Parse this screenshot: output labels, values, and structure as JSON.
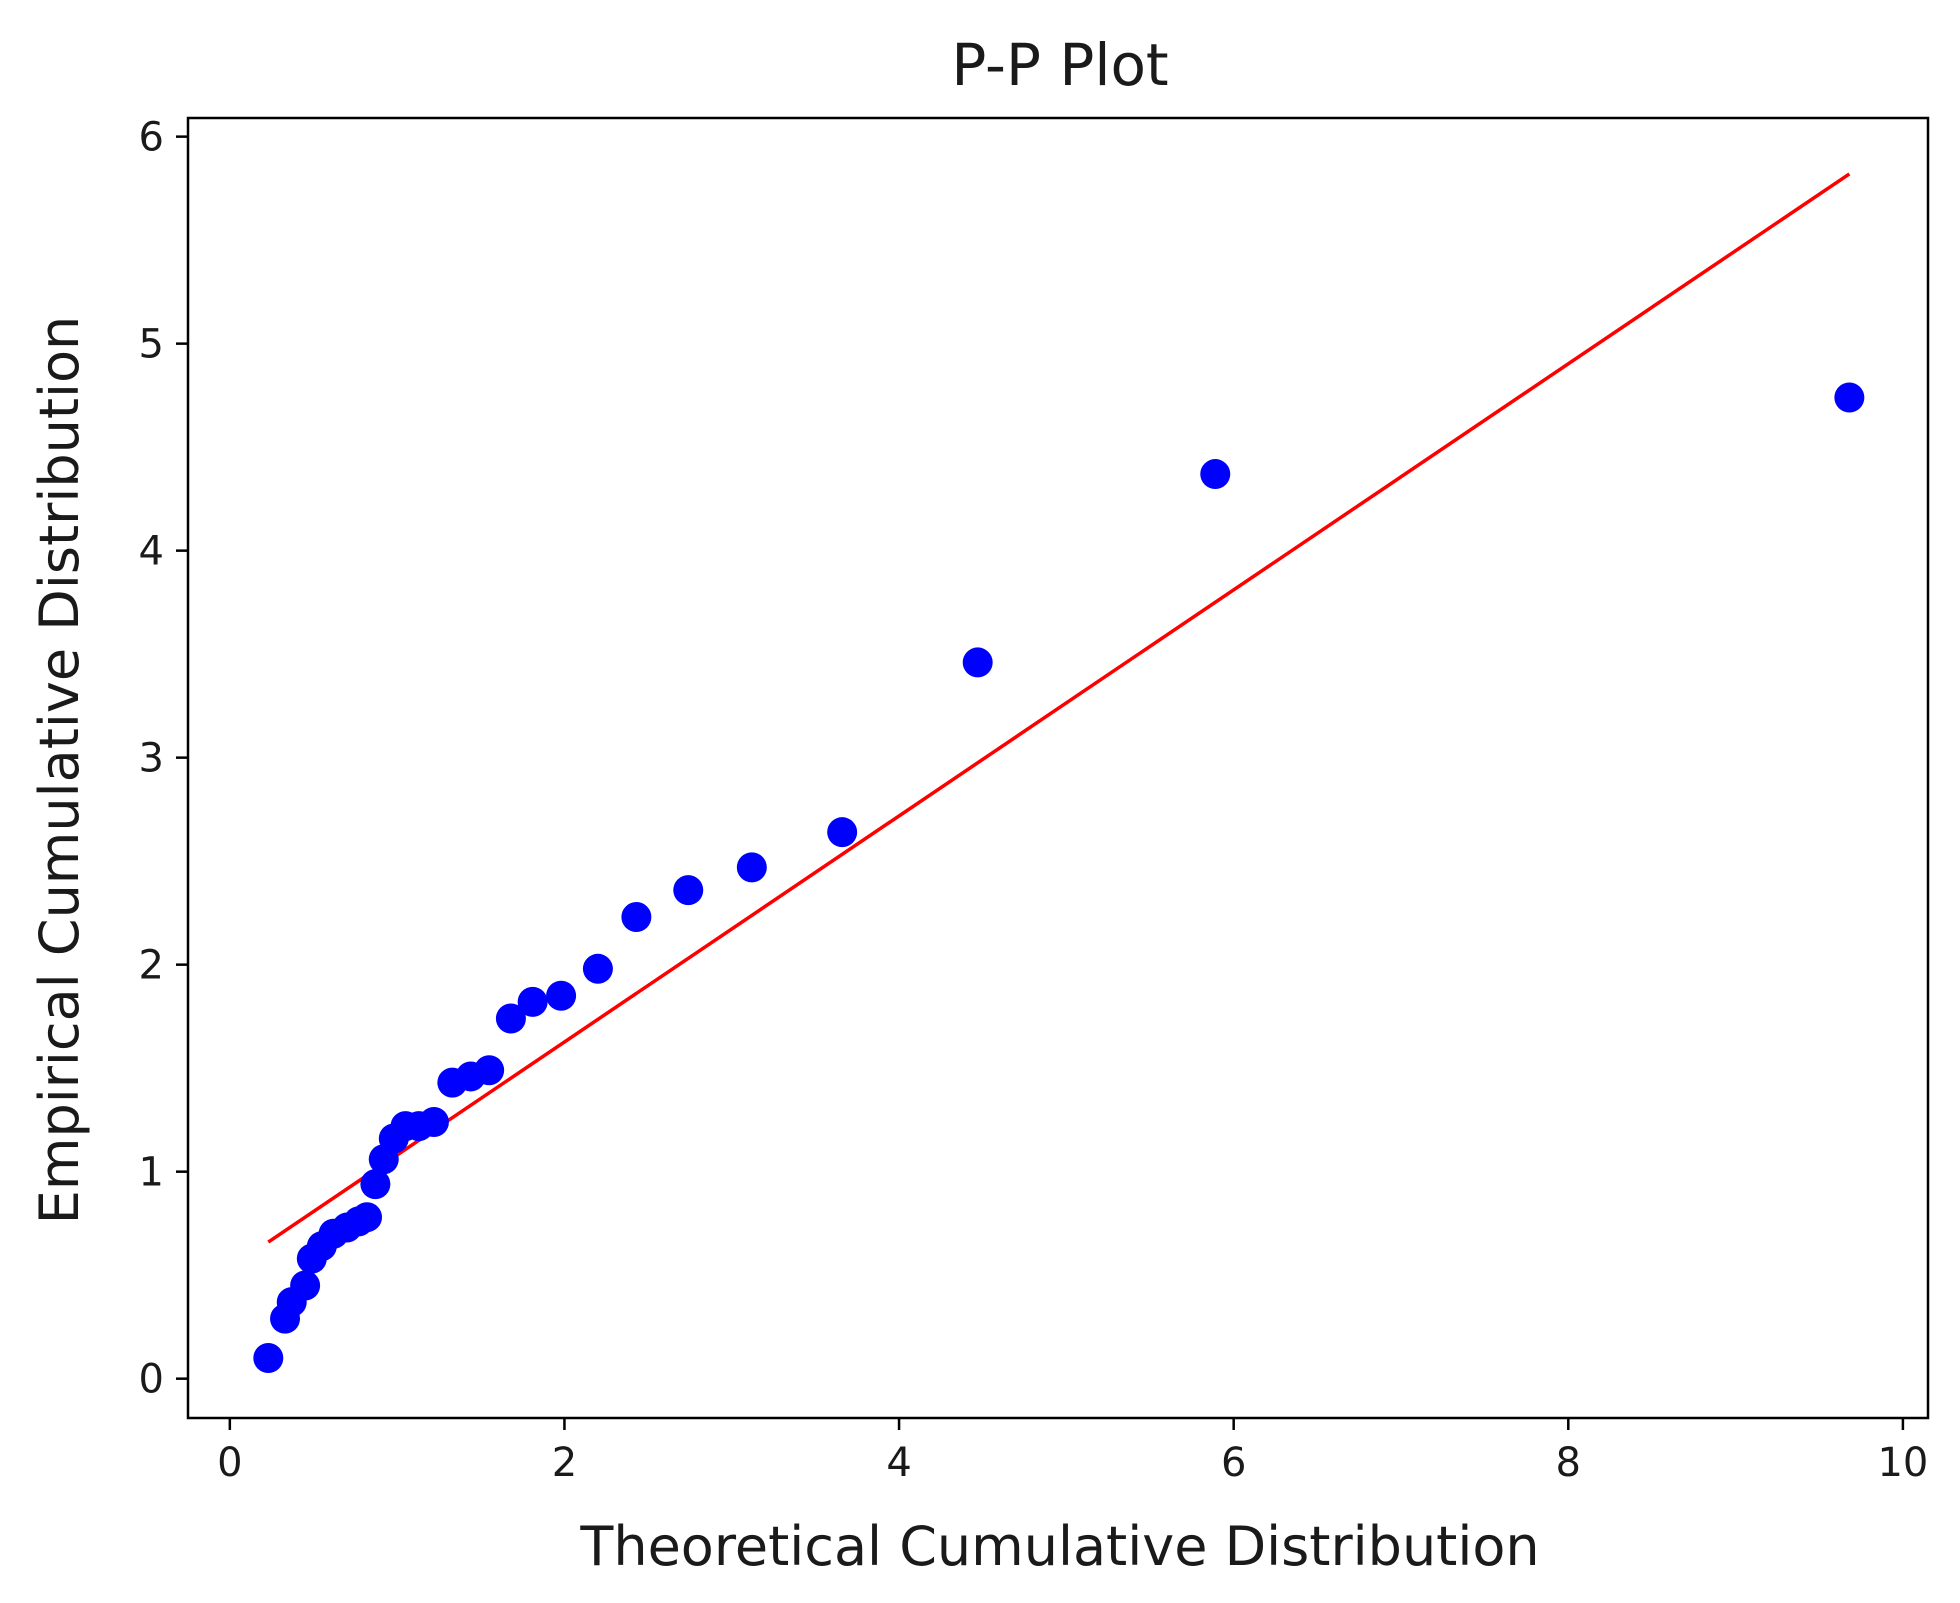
{
  "chart_data": {
    "type": "scatter",
    "title": "P-P Plot",
    "xlabel": "Theoretical Cumulative Distribution",
    "ylabel": "Empirical Cumulative Distribution",
    "xlim": [
      -0.25,
      10.15
    ],
    "ylim": [
      -0.19,
      6.09
    ],
    "x_ticks": [
      0,
      2,
      4,
      6,
      8,
      10
    ],
    "y_ticks": [
      0,
      1,
      2,
      3,
      4,
      5,
      6
    ],
    "x_tick_labels": [
      "0",
      "2",
      "4",
      "6",
      "8",
      "10"
    ],
    "y_tick_labels": [
      "0",
      "1",
      "2",
      "3",
      "4",
      "5",
      "6"
    ],
    "grid": false,
    "legend": "none",
    "points": {
      "color": "#0000ff",
      "x": [
        0.23,
        0.33,
        0.37,
        0.45,
        0.49,
        0.55,
        0.62,
        0.7,
        0.77,
        0.82,
        0.87,
        0.92,
        0.98,
        1.05,
        1.13,
        1.22,
        1.33,
        1.44,
        1.55,
        1.68,
        1.81,
        1.98,
        2.2,
        2.43,
        2.74,
        3.12,
        3.66,
        4.47,
        5.89,
        9.68
      ],
      "y": [
        0.1,
        0.29,
        0.37,
        0.45,
        0.58,
        0.64,
        0.7,
        0.73,
        0.76,
        0.78,
        0.94,
        1.06,
        1.16,
        1.22,
        1.22,
        1.24,
        1.43,
        1.46,
        1.49,
        1.74,
        1.82,
        1.85,
        1.98,
        2.23,
        2.36,
        2.47,
        2.64,
        3.46,
        4.37,
        4.74
      ]
    },
    "fit_line": {
      "color": "#ff0000",
      "x": [
        0.23,
        9.68
      ],
      "y": [
        0.66,
        5.82
      ]
    }
  }
}
